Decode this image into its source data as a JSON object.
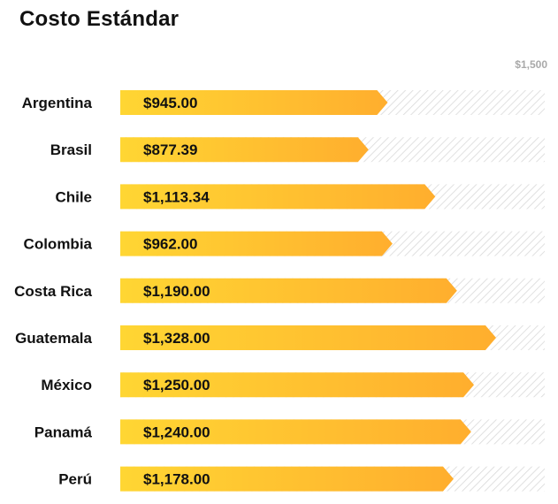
{
  "chart_data": {
    "type": "bar",
    "orientation": "horizontal",
    "title": "Costo Estándar",
    "max_label": "$1,500",
    "xlim": [
      0,
      1500
    ],
    "categories": [
      "Argentina",
      "Brasil",
      "Chile",
      "Colombia",
      "Costa Rica",
      "Guatemala",
      "México",
      "Panamá",
      "Perú"
    ],
    "values": [
      945.0,
      877.39,
      1113.34,
      962.0,
      1190.0,
      1328.0,
      1250.0,
      1240.0,
      1178.0
    ],
    "value_labels": [
      "$945.00",
      "$877.39",
      "$1,113.34",
      "$962.00",
      "$1,190.00",
      "$1,328.00",
      "$1,250.00",
      "$1,240.00",
      "$1,178.00"
    ],
    "colors": {
      "bar_start": "#FFD633",
      "bar_end": "#FFAE2E",
      "track_hatch": "#d9d9d9"
    }
  }
}
